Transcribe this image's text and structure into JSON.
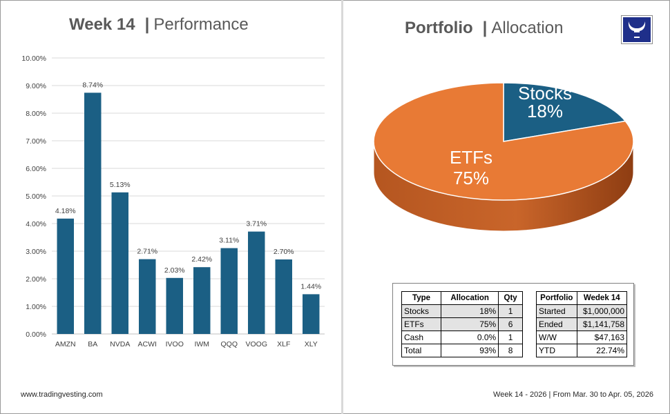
{
  "left": {
    "title_bold": "Week 14",
    "title_sep": "|",
    "title_rest": "Performance",
    "footer": "www.tradingvesting.com"
  },
  "right": {
    "title_bold": "Portfolio",
    "title_sep": "|",
    "title_rest": "Allocation",
    "footer": "Week 14 - 2026 | From Mar. 30 to Apr. 05, 2026",
    "logo_icon": "bull-logo-icon"
  },
  "chart_data": [
    {
      "type": "bar",
      "categories": [
        "AMZN",
        "BA",
        "NVDA",
        "ACWI",
        "IVOO",
        "IWM",
        "QQQ",
        "VOOG",
        "XLF",
        "XLY"
      ],
      "values": [
        4.18,
        8.74,
        5.13,
        2.71,
        2.03,
        2.42,
        3.11,
        3.71,
        2.7,
        1.44
      ],
      "data_labels": [
        "4.18%",
        "8.74%",
        "5.13%",
        "2.71%",
        "2.03%",
        "2.42%",
        "3.11%",
        "3.71%",
        "2.70%",
        "1.44%"
      ],
      "ylim": [
        0,
        10
      ],
      "yticks": [
        "0.00%",
        "1.00%",
        "2.00%",
        "3.00%",
        "4.00%",
        "5.00%",
        "6.00%",
        "7.00%",
        "8.00%",
        "9.00%",
        "10.00%"
      ],
      "bar_color": "#1b5f84",
      "grid": true
    },
    {
      "type": "pie",
      "style": "3d",
      "labels": [
        "Stocks",
        "ETFs"
      ],
      "values": [
        18,
        75
      ],
      "value_labels": [
        "18%",
        "75%"
      ],
      "colors": [
        "#1b5f84",
        "#e87a35"
      ]
    }
  ],
  "allocation_table": {
    "headers": [
      "Type",
      "Allocation",
      "Qty"
    ],
    "rows": [
      [
        "Stocks",
        "18%",
        "1"
      ],
      [
        "ETFs",
        "75%",
        "6"
      ],
      [
        "Cash",
        "0.0%",
        "1"
      ],
      [
        "Total",
        "93%",
        "8"
      ]
    ]
  },
  "portfolio_table": {
    "headers": [
      "Portfolio",
      "Wedek 14"
    ],
    "rows": [
      [
        "Started",
        "$1,000,000"
      ],
      [
        "Ended",
        "$1,141,758"
      ],
      [
        "W/W",
        "$47,163"
      ],
      [
        "YTD",
        "22.74%"
      ]
    ]
  }
}
